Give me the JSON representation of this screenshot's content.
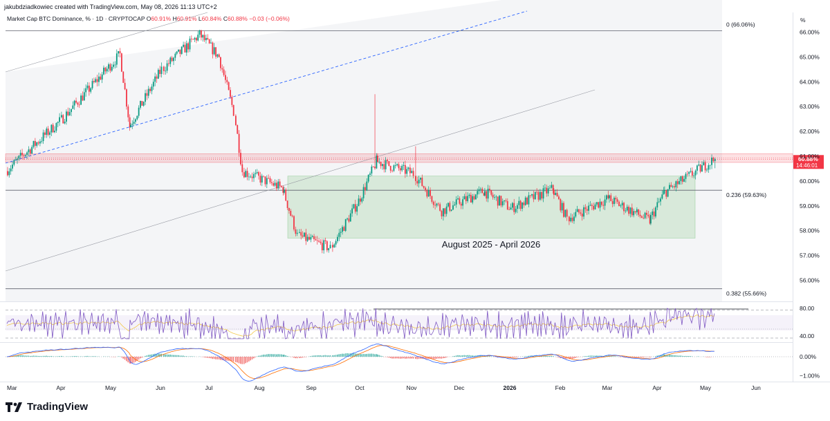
{
  "header": {
    "credit": "jakubdziadkowiec created with TradingView.com, May 08, 2026 11:13 UTC+2"
  },
  "legend": {
    "symbol": "Market Cap BTC Dominance, % · 1D · CRYPTOCAP",
    "o_label": "O",
    "o_value": "60.91%",
    "h_label": "H",
    "h_value": "60.91%",
    "l_label": "L",
    "l_value": "60.84%",
    "c_label": "C",
    "c_value": "60.88%",
    "change": "−0.03 (−0.06%)"
  },
  "price_badge": {
    "value": "60.88%",
    "countdown": "14:46:01"
  },
  "annotation": "August 2025 - April 2026",
  "footer": {
    "brand": "TradingView"
  },
  "colors": {
    "up": "#089981",
    "down": "#f23645",
    "rsi": "#7e57c2",
    "macd": "#2962ff",
    "signal": "#ff6d00",
    "zone_red": "#f23645",
    "zone_green": "#4caf50",
    "trend_blue": "#2962ff"
  },
  "chart_data": [
    {
      "type": "candlestick",
      "title": "Market Cap BTC Dominance, % · 1D · CRYPTOCAP",
      "y_unit": "%",
      "ylim": [
        55.6,
        66.4
      ],
      "y_ticks": [
        "66.00%",
        "65.00%",
        "64.00%",
        "63.00%",
        "62.00%",
        "61.00%",
        "60.00%",
        "59.00%",
        "58.00%",
        "57.00%",
        "56.00%"
      ],
      "x_ticks": [
        "Mar",
        "Apr",
        "May",
        "Jun",
        "Jul",
        "Aug",
        "Sep",
        "Oct",
        "Nov",
        "Dec",
        "2026",
        "Feb",
        "Mar",
        "Apr",
        "May",
        "Jun"
      ],
      "last_close": 60.88,
      "fib_levels": [
        {
          "label": "0 (66.06%)",
          "value": 66.06
        },
        {
          "label": "0.236 (59.63%)",
          "value": 59.63
        },
        {
          "label": "0.382 (55.66%)",
          "value": 55.66
        }
      ],
      "zones": [
        {
          "name": "resistance",
          "from": 60.75,
          "to": 61.1,
          "color": "red"
        },
        {
          "name": "range",
          "from": 57.7,
          "to": 60.2,
          "x_from": "Aug",
          "x_to": "Apr",
          "color": "green"
        }
      ],
      "anchor_path": [
        {
          "x": "Mar",
          "y": 60.4
        },
        {
          "x": "Apr",
          "y": 62.4
        },
        {
          "x": "May",
          "y": 65.1
        },
        {
          "x": "May",
          "y": 62.2
        },
        {
          "x": "Jun",
          "y": 64.5
        },
        {
          "x": "Jun",
          "y": 65.9
        },
        {
          "x": "Jul",
          "y": 65.0
        },
        {
          "x": "Jul",
          "y": 62.8
        },
        {
          "x": "Aug",
          "y": 60.4
        },
        {
          "x": "Aug",
          "y": 59.7
        },
        {
          "x": "Sep",
          "y": 57.8
        },
        {
          "x": "Sep",
          "y": 57.3
        },
        {
          "x": "Oct",
          "y": 59.2
        },
        {
          "x": "Oct",
          "y": 60.8
        },
        {
          "x": "Nov",
          "y": 60.3
        },
        {
          "x": "Nov",
          "y": 58.8
        },
        {
          "x": "Dec",
          "y": 59.6
        },
        {
          "x": "2026",
          "y": 58.9
        },
        {
          "x": "Feb",
          "y": 59.7
        },
        {
          "x": "Feb",
          "y": 58.5
        },
        {
          "x": "Mar",
          "y": 59.3
        },
        {
          "x": "Apr",
          "y": 58.4
        },
        {
          "x": "Apr",
          "y": 59.5
        },
        {
          "x": "May",
          "y": 60.9
        }
      ]
    },
    {
      "type": "line",
      "name": "RSI",
      "ylim": [
        35,
        85
      ],
      "y_ticks": [
        "80.00",
        "40.00"
      ],
      "bands": [
        70,
        30
      ]
    },
    {
      "type": "bar",
      "name": "MACD",
      "ylim": [
        -1.2,
        0.6
      ],
      "y_ticks": [
        "0.00%",
        "−1.00%"
      ]
    }
  ]
}
